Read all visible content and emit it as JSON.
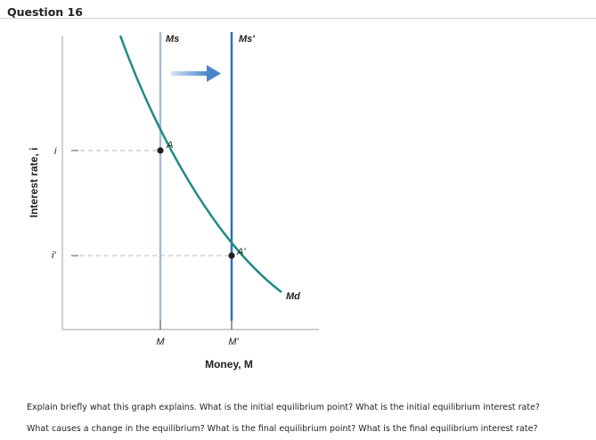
{
  "question": {
    "title": "Question 16",
    "text_lines": [
      "Explain briefly what this graph explains. What is the initial equilibrium point? What is the initial equilibrium interest rate?",
      "What causes a change in the equilibrium? What is the final equilibrium point? What is the final equilibrium interest rate?"
    ]
  },
  "figure": {
    "axes": {
      "y_label": "Interest rate, i",
      "x_label": "Money, M",
      "y_ticks": [
        "i",
        "i'"
      ],
      "x_ticks": [
        "M",
        "M'"
      ]
    },
    "curves": {
      "supply_initial": "Ms",
      "supply_final": "Ms'",
      "demand": "Md"
    },
    "points": {
      "initial": "A",
      "final": "A'"
    },
    "colors": {
      "supply_initial": "#a8bcd8",
      "supply_final": "#2f6fb8",
      "demand": "#1f8a84",
      "arrow": "#4a86c8",
      "axis": "#bfbfbf",
      "guide": "#b9b9b9",
      "point": "#222222"
    }
  }
}
